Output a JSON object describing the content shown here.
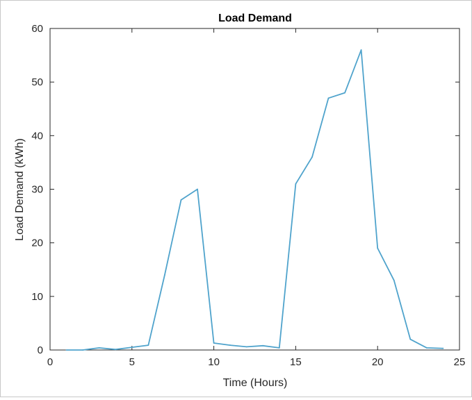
{
  "chart_data": {
    "type": "line",
    "title": "Load Demand",
    "xlabel": "Time (Hours)",
    "ylabel": "Load Demand (kWh)",
    "xlim": [
      0,
      25
    ],
    "ylim": [
      0,
      60
    ],
    "xticks": [
      0,
      5,
      10,
      15,
      20,
      25
    ],
    "yticks": [
      0,
      10,
      20,
      30,
      40,
      50,
      60
    ],
    "grid": false,
    "legend": "none",
    "series": [
      {
        "color": "#4fa3cc",
        "x": [
          1,
          2,
          3,
          4,
          5,
          6,
          7,
          8,
          9,
          10,
          11,
          12,
          13,
          14,
          15,
          16,
          17,
          18,
          19,
          20,
          21,
          22,
          23,
          24
        ],
        "values": [
          0,
          0,
          0.4,
          0.1,
          0.5,
          0.9,
          14,
          28,
          30,
          1.3,
          0.9,
          0.6,
          0.8,
          0.4,
          31,
          36,
          47,
          48,
          56,
          19,
          13,
          2,
          0.4,
          0.3
        ]
      }
    ]
  }
}
